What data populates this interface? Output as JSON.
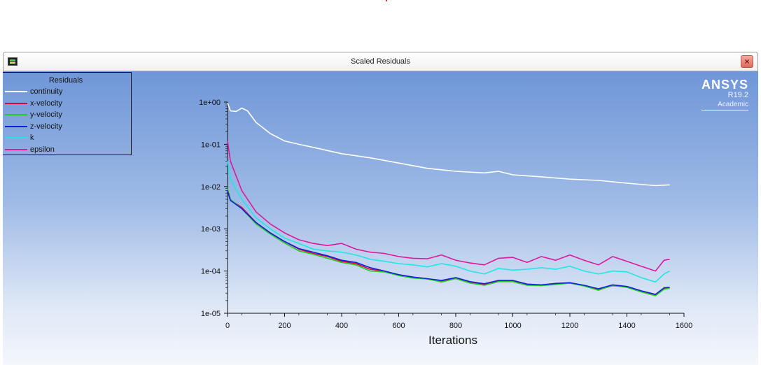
{
  "window": {
    "title": "Scaled Residuals",
    "close_label": "×"
  },
  "brand": {
    "name": "ANSYS",
    "version": "R19.2",
    "edition": "Academic"
  },
  "legend": {
    "title": "Residuals",
    "items": [
      {
        "label": "continuity",
        "color": "#ffffff"
      },
      {
        "label": "x-velocity",
        "color": "#e0003c"
      },
      {
        "label": "y-velocity",
        "color": "#22cc22"
      },
      {
        "label": "z-velocity",
        "color": "#1020d8"
      },
      {
        "label": "k",
        "color": "#20e6e6"
      },
      {
        "label": "epsilon",
        "color": "#e0189c"
      }
    ]
  },
  "chart_data": {
    "type": "line",
    "title": "",
    "xlabel": "Iterations",
    "ylabel": "",
    "xlim": [
      0,
      1600
    ],
    "ylim": [
      1e-05,
      1
    ],
    "y_scale": "log",
    "x_ticks": [
      "0",
      "200",
      "400",
      "600",
      "800",
      "1000",
      "1200",
      "1400",
      "1600"
    ],
    "y_ticks": [
      "1e+00",
      "1e-01",
      "1e-02",
      "1e-03",
      "1e-04",
      "1e-05"
    ],
    "series": [
      {
        "name": "continuity",
        "color": "#ffffff",
        "points": [
          [
            0,
            0.95
          ],
          [
            10,
            0.62
          ],
          [
            30,
            0.6
          ],
          [
            50,
            0.72
          ],
          [
            70,
            0.62
          ],
          [
            100,
            0.33
          ],
          [
            150,
            0.18
          ],
          [
            200,
            0.12
          ],
          [
            250,
            0.1
          ],
          [
            300,
            0.085
          ],
          [
            400,
            0.06
          ],
          [
            500,
            0.048
          ],
          [
            600,
            0.036
          ],
          [
            700,
            0.027
          ],
          [
            800,
            0.023
          ],
          [
            900,
            0.021
          ],
          [
            950,
            0.023
          ],
          [
            1000,
            0.019
          ],
          [
            1100,
            0.017
          ],
          [
            1200,
            0.015
          ],
          [
            1300,
            0.014
          ],
          [
            1400,
            0.012
          ],
          [
            1500,
            0.0105
          ],
          [
            1550,
            0.011
          ]
        ]
      },
      {
        "name": "x-velocity",
        "color": "#e0003c",
        "points": [
          [
            0,
            0.008
          ],
          [
            10,
            0.0048
          ],
          [
            50,
            0.0032
          ],
          [
            100,
            0.0014
          ],
          [
            150,
            0.0008
          ],
          [
            200,
            0.0005
          ],
          [
            250,
            0.00033
          ],
          [
            300,
            0.00026
          ],
          [
            350,
            0.00022
          ],
          [
            400,
            0.00017
          ],
          [
            450,
            0.00015
          ],
          [
            500,
            0.00011
          ],
          [
            550,
            0.0001
          ],
          [
            600,
            8e-05
          ],
          [
            650,
            7e-05
          ],
          [
            700,
            6.5e-05
          ],
          [
            750,
            5.8e-05
          ],
          [
            800,
            6.8e-05
          ],
          [
            850,
            5.5e-05
          ],
          [
            900,
            4.8e-05
          ],
          [
            950,
            5.8e-05
          ],
          [
            1000,
            5.8e-05
          ],
          [
            1050,
            4.7e-05
          ],
          [
            1100,
            4.6e-05
          ],
          [
            1150,
            5e-05
          ],
          [
            1200,
            5.2e-05
          ],
          [
            1250,
            4.5e-05
          ],
          [
            1300,
            3.6e-05
          ],
          [
            1350,
            4.5e-05
          ],
          [
            1400,
            4.2e-05
          ],
          [
            1450,
            3.3e-05
          ],
          [
            1500,
            2.7e-05
          ],
          [
            1530,
            3.8e-05
          ],
          [
            1550,
            4e-05
          ]
        ]
      },
      {
        "name": "y-velocity",
        "color": "#22cc22",
        "points": [
          [
            0,
            0.009
          ],
          [
            10,
            0.005
          ],
          [
            50,
            0.003
          ],
          [
            100,
            0.0013
          ],
          [
            150,
            0.00075
          ],
          [
            200,
            0.00046
          ],
          [
            250,
            0.0003
          ],
          [
            300,
            0.00025
          ],
          [
            350,
            0.0002
          ],
          [
            400,
            0.00016
          ],
          [
            450,
            0.00014
          ],
          [
            500,
            0.0001
          ],
          [
            550,
            9.5e-05
          ],
          [
            600,
            7.8e-05
          ],
          [
            650,
            6.8e-05
          ],
          [
            700,
            6.5e-05
          ],
          [
            750,
            5.5e-05
          ],
          [
            800,
            6.6e-05
          ],
          [
            850,
            5.2e-05
          ],
          [
            900,
            4.6e-05
          ],
          [
            950,
            5.6e-05
          ],
          [
            1000,
            5.6e-05
          ],
          [
            1050,
            4.6e-05
          ],
          [
            1100,
            4.5e-05
          ],
          [
            1150,
            4.8e-05
          ],
          [
            1200,
            5.2e-05
          ],
          [
            1250,
            4.4e-05
          ],
          [
            1300,
            3.5e-05
          ],
          [
            1350,
            4.6e-05
          ],
          [
            1400,
            4.1e-05
          ],
          [
            1450,
            3.2e-05
          ],
          [
            1500,
            2.6e-05
          ],
          [
            1530,
            3.7e-05
          ],
          [
            1550,
            3.9e-05
          ]
        ]
      },
      {
        "name": "z-velocity",
        "color": "#1020d8",
        "points": [
          [
            0,
            0.008
          ],
          [
            10,
            0.0047
          ],
          [
            50,
            0.003
          ],
          [
            100,
            0.0014
          ],
          [
            150,
            0.0008
          ],
          [
            200,
            0.0005
          ],
          [
            250,
            0.00034
          ],
          [
            300,
            0.00028
          ],
          [
            350,
            0.00023
          ],
          [
            400,
            0.00018
          ],
          [
            450,
            0.00016
          ],
          [
            500,
            0.00012
          ],
          [
            550,
            0.0001
          ],
          [
            600,
            8.2e-05
          ],
          [
            650,
            7.2e-05
          ],
          [
            700,
            6.6e-05
          ],
          [
            750,
            6e-05
          ],
          [
            800,
            7e-05
          ],
          [
            850,
            5.6e-05
          ],
          [
            900,
            5e-05
          ],
          [
            950,
            6e-05
          ],
          [
            1000,
            6e-05
          ],
          [
            1050,
            4.9e-05
          ],
          [
            1100,
            4.7e-05
          ],
          [
            1150,
            5.1e-05
          ],
          [
            1200,
            5.3e-05
          ],
          [
            1250,
            4.6e-05
          ],
          [
            1300,
            3.8e-05
          ],
          [
            1350,
            4.7e-05
          ],
          [
            1400,
            4.3e-05
          ],
          [
            1450,
            3.4e-05
          ],
          [
            1500,
            2.8e-05
          ],
          [
            1530,
            4e-05
          ],
          [
            1550,
            4.1e-05
          ]
        ]
      },
      {
        "name": "k",
        "color": "#20e6e6",
        "points": [
          [
            0,
            0.04
          ],
          [
            10,
            0.015
          ],
          [
            50,
            0.005
          ],
          [
            100,
            0.0018
          ],
          [
            150,
            0.001
          ],
          [
            200,
            0.0006
          ],
          [
            250,
            0.00045
          ],
          [
            300,
            0.00033
          ],
          [
            350,
            0.0003
          ],
          [
            400,
            0.00028
          ],
          [
            450,
            0.00024
          ],
          [
            500,
            0.00019
          ],
          [
            550,
            0.00017
          ],
          [
            600,
            0.00015
          ],
          [
            650,
            0.00014
          ],
          [
            700,
            0.000125
          ],
          [
            750,
            0.00015
          ],
          [
            800,
            0.00013
          ],
          [
            850,
            0.0001
          ],
          [
            900,
            8.5e-05
          ],
          [
            950,
            0.000115
          ],
          [
            1000,
            0.000105
          ],
          [
            1050,
            0.00011
          ],
          [
            1100,
            0.00012
          ],
          [
            1150,
            0.00011
          ],
          [
            1200,
            0.00013
          ],
          [
            1250,
            0.0001
          ],
          [
            1300,
            8.5e-05
          ],
          [
            1350,
            0.0001
          ],
          [
            1400,
            9.5e-05
          ],
          [
            1450,
            7e-05
          ],
          [
            1500,
            5.5e-05
          ],
          [
            1530,
            8.5e-05
          ],
          [
            1550,
            0.0001
          ]
        ]
      },
      {
        "name": "epsilon",
        "color": "#e0189c",
        "points": [
          [
            0,
            0.12
          ],
          [
            10,
            0.04
          ],
          [
            50,
            0.008
          ],
          [
            100,
            0.0025
          ],
          [
            150,
            0.0013
          ],
          [
            200,
            0.0008
          ],
          [
            250,
            0.00055
          ],
          [
            300,
            0.00045
          ],
          [
            350,
            0.0004
          ],
          [
            400,
            0.00045
          ],
          [
            450,
            0.00033
          ],
          [
            500,
            0.00028
          ],
          [
            550,
            0.00026
          ],
          [
            600,
            0.00022
          ],
          [
            650,
            0.0002
          ],
          [
            700,
            0.000195
          ],
          [
            750,
            0.00024
          ],
          [
            800,
            0.00018
          ],
          [
            850,
            0.000155
          ],
          [
            900,
            0.00014
          ],
          [
            950,
            0.0002
          ],
          [
            1000,
            0.00021
          ],
          [
            1050,
            0.00016
          ],
          [
            1100,
            0.00022
          ],
          [
            1150,
            0.00018
          ],
          [
            1200,
            0.00024
          ],
          [
            1250,
            0.00018
          ],
          [
            1300,
            0.00014
          ],
          [
            1350,
            0.00022
          ],
          [
            1400,
            0.00017
          ],
          [
            1450,
            0.00013
          ],
          [
            1500,
            0.0001
          ],
          [
            1530,
            0.00018
          ],
          [
            1550,
            0.00019
          ]
        ]
      }
    ]
  }
}
